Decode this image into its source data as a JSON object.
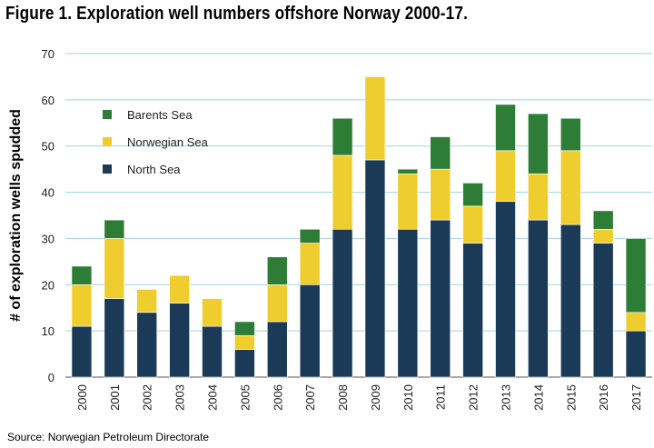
{
  "chart_data": {
    "type": "bar",
    "stacked": true,
    "title": "Figure 1. Exploration well numbers offshore Norway 2000-17.",
    "ylabel": "# of exploration wells spudded",
    "xlabel": "",
    "ylim": [
      0,
      70
    ],
    "yticks": [
      0,
      10,
      20,
      30,
      40,
      50,
      60,
      70
    ],
    "grid": true,
    "legend_position": "top-left",
    "categories": [
      "2000",
      "2001",
      "2002",
      "2003",
      "2004",
      "2005",
      "2006",
      "2007",
      "2008",
      "2009",
      "2010",
      "2011",
      "2012",
      "2013",
      "2014",
      "2015",
      "2016",
      "2017"
    ],
    "series": [
      {
        "name": "North Sea",
        "color": "#1b3a57",
        "values": [
          11,
          17,
          14,
          16,
          11,
          6,
          12,
          20,
          32,
          47,
          32,
          34,
          29,
          38,
          34,
          33,
          29,
          10
        ]
      },
      {
        "name": "Norwegian Sea",
        "color": "#f0cd2e",
        "values": [
          9,
          13,
          5,
          6,
          6,
          3,
          8,
          9,
          16,
          18,
          12,
          11,
          8,
          11,
          10,
          16,
          3,
          4
        ]
      },
      {
        "name": "Barents Sea",
        "color": "#2e7d36",
        "values": [
          4,
          4,
          0,
          0,
          0,
          3,
          6,
          3,
          8,
          0,
          1,
          7,
          5,
          10,
          13,
          7,
          4,
          16
        ]
      }
    ]
  },
  "source": "Source: Norwegian Petroleum Directorate",
  "colors": {
    "grid": "#9fd3e6",
    "axis": "#555555"
  }
}
